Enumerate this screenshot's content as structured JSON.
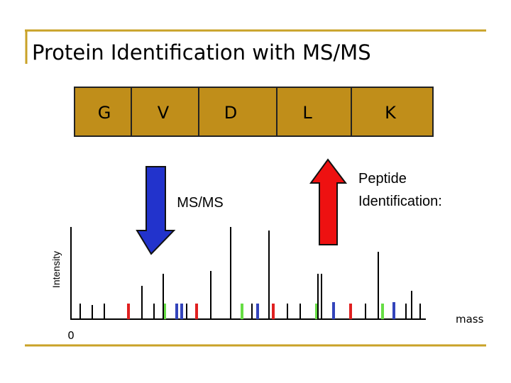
{
  "title": "Protein Identification with MS/MS",
  "peptide": {
    "residues": [
      "G",
      "V",
      "D",
      "L",
      "K"
    ]
  },
  "labels": {
    "ms_ms": "MS/MS",
    "peptide_identification": [
      "Peptide",
      "Identification:"
    ]
  },
  "axes": {
    "y_label": "Intensity",
    "x_label": "mass",
    "origin": "0"
  }
}
